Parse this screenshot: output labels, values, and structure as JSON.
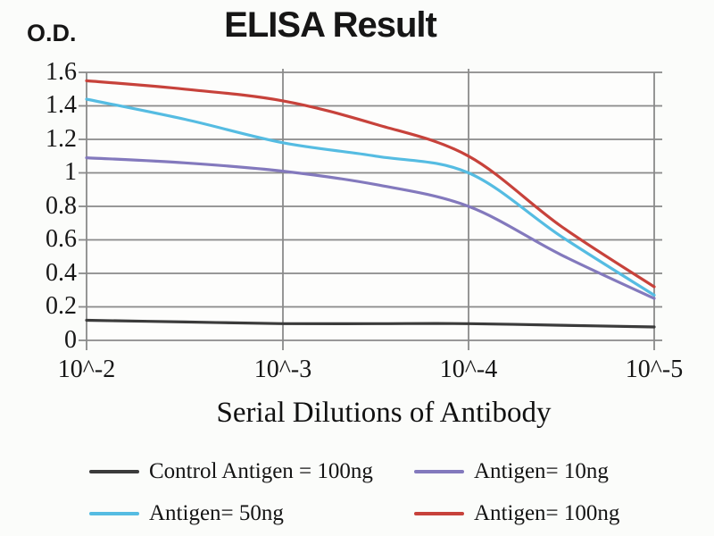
{
  "chart_data": {
    "type": "line",
    "title": "ELISA Result",
    "ylabel": "O.D.",
    "xlabel": "Serial Dilutions of Antibody",
    "categories": [
      "10^-2",
      "10^-3",
      "10^-4",
      "10^-5"
    ],
    "x_tick_labels": [
      "10^-2",
      "10^-3",
      "10^-4",
      "10^-5"
    ],
    "y_tick_labels": [
      "1.6",
      "1.4",
      "1.2",
      "1",
      "0.8",
      "0.6",
      "0.4",
      "0.2",
      "0"
    ],
    "ylim": [
      0,
      1.6
    ],
    "y_step": 0.2,
    "grid": true,
    "grid_color": "#8a8a8a",
    "legend_position": "bottom",
    "series": [
      {
        "name": "Control Antigen = 100ng",
        "color": "#3b3b3b",
        "values": [
          0.12,
          0.1,
          0.1,
          0.08
        ],
        "samples": [
          [
            0,
            0.12
          ],
          [
            0.5,
            0.11
          ],
          [
            1,
            0.1
          ],
          [
            1.5,
            0.1
          ],
          [
            2,
            0.1
          ],
          [
            2.5,
            0.09
          ],
          [
            3,
            0.08
          ]
        ]
      },
      {
        "name": "Antigen= 10ng",
        "color": "#8379bd",
        "values": [
          1.09,
          1.01,
          0.8,
          0.25
        ],
        "samples": [
          [
            0,
            1.09
          ],
          [
            0.5,
            1.06
          ],
          [
            1,
            1.01
          ],
          [
            1.5,
            0.93
          ],
          [
            2,
            0.8
          ],
          [
            2.5,
            0.51
          ],
          [
            3,
            0.25
          ]
        ]
      },
      {
        "name": "Antigen= 50ng",
        "color": "#55bce2",
        "values": [
          1.44,
          1.18,
          1.0,
          0.27
        ],
        "samples": [
          [
            0,
            1.44
          ],
          [
            0.5,
            1.32
          ],
          [
            1,
            1.18
          ],
          [
            1.5,
            1.1
          ],
          [
            2,
            1.0
          ],
          [
            2.5,
            0.62
          ],
          [
            3,
            0.27
          ]
        ]
      },
      {
        "name": "Antigen= 100ng",
        "color": "#c7423b",
        "values": [
          1.55,
          1.43,
          1.1,
          0.32
        ],
        "samples": [
          [
            0,
            1.55
          ],
          [
            0.5,
            1.5
          ],
          [
            1,
            1.43
          ],
          [
            1.5,
            1.29
          ],
          [
            2,
            1.1
          ],
          [
            2.5,
            0.68
          ],
          [
            3,
            0.32
          ]
        ]
      }
    ]
  }
}
